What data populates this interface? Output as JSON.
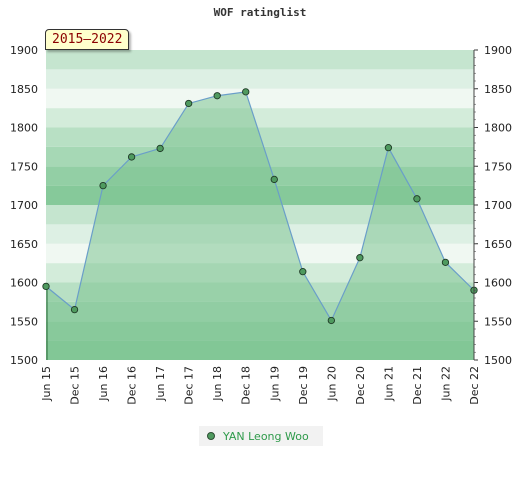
{
  "chart_data": {
    "type": "area",
    "title": "WOF ratinglist",
    "period_badge": "2015–2022",
    "x": [
      "Jun 15",
      "Dec 15",
      "Jun 16",
      "Dec 16",
      "Jun 17",
      "Dec 17",
      "Jun 18",
      "Dec 18",
      "Jun 19",
      "Dec 19",
      "Jun 20",
      "Dec 20",
      "Jun 21",
      "Dec 21",
      "Jun 22",
      "Dec 22"
    ],
    "series": [
      {
        "name": "YAN Leong Woo",
        "values": [
          1595,
          1565,
          1725,
          1762,
          1773,
          1831,
          1841,
          1846,
          1733,
          1614,
          1551,
          1632,
          1774,
          1708,
          1626,
          1590
        ]
      }
    ],
    "ylim": [
      1500,
      1900
    ],
    "yticks": [
      1500,
      1550,
      1600,
      1650,
      1700,
      1750,
      1800,
      1850,
      1900
    ],
    "grid": true,
    "legend_position": "bottom",
    "colors": {
      "line": "#6a9ec9",
      "fill": "#7fc493",
      "point": "#4f9a5f"
    }
  }
}
